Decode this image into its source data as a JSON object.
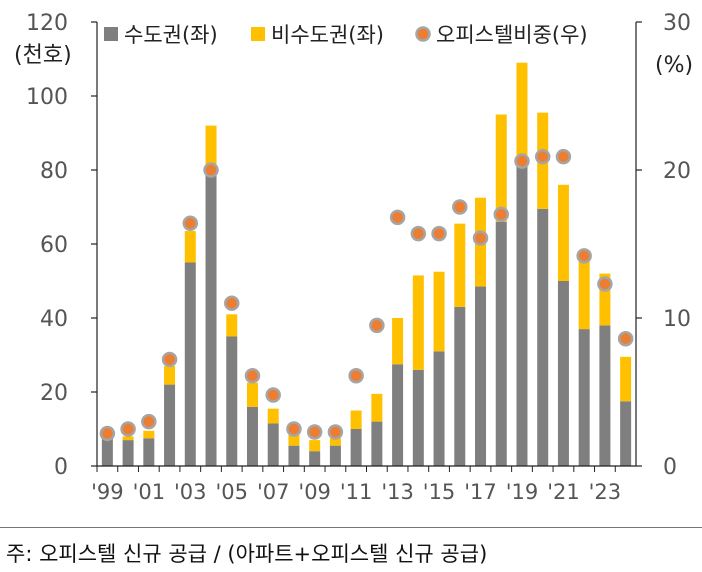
{
  "chart_data": {
    "type": "bar",
    "stacked": true,
    "categories": [
      "1999",
      "2000",
      "2001",
      "2002",
      "2003",
      "2004",
      "2005",
      "2006",
      "2007",
      "2008",
      "2009",
      "2010",
      "2011",
      "2012",
      "2013",
      "2014",
      "2015",
      "2016",
      "2017",
      "2018",
      "2019",
      "2020",
      "2021",
      "2022",
      "2023",
      "2024"
    ],
    "x_tick_labels": [
      "'99",
      "'01",
      "'03",
      "'05",
      "'07",
      "'09",
      "'11",
      "'13",
      "'15",
      "'17",
      "'19",
      "'21",
      "'23"
    ],
    "series": [
      {
        "name": "수도권(좌)",
        "type": "bar",
        "axis": "left",
        "color": "#7f7f7f",
        "values": [
          7.5,
          7,
          7.5,
          22,
          55,
          79,
          35,
          16,
          11.5,
          5.5,
          4,
          5.5,
          10,
          12,
          27.5,
          26,
          31,
          43,
          48.5,
          66,
          82,
          69.5,
          50,
          37,
          38,
          17.5
        ]
      },
      {
        "name": "비수도권(좌)",
        "type": "bar",
        "axis": "left",
        "color": "#ffc000",
        "values": [
          0.5,
          1,
          2,
          5,
          8.5,
          13,
          6,
          6.5,
          4,
          3,
          3,
          2,
          5,
          7.5,
          12.5,
          25.5,
          21.5,
          22.5,
          24,
          29,
          27,
          26,
          26,
          20,
          14,
          12
        ]
      },
      {
        "name": "오피스텔비중(우)",
        "type": "scatter",
        "axis": "right",
        "color": "#ed7d31",
        "edge_color": "#a5a5a5",
        "values": [
          2.2,
          2.5,
          3,
          7.2,
          16.4,
          20,
          11,
          6.1,
          4.8,
          2.5,
          2.3,
          2.3,
          6.1,
          9.5,
          16.8,
          15.7,
          15.7,
          17.5,
          15.4,
          17,
          20.6,
          20.9,
          20.9,
          14.2,
          12.3,
          8.6
        ]
      }
    ],
    "left_axis": {
      "label": "(천호)",
      "ylim": [
        0,
        120
      ],
      "ticks": [
        "0",
        "20",
        "40",
        "60",
        "80",
        "100",
        "120"
      ]
    },
    "right_axis": {
      "label": "(%)",
      "ylim": [
        0,
        30
      ],
      "ticks": [
        "0",
        "10",
        "20",
        "30"
      ]
    },
    "legend_position": "top",
    "grid": false
  },
  "footnote": "주: 오피스텔 신규 공급 / (아파트+오피스텔 신규 공급)"
}
